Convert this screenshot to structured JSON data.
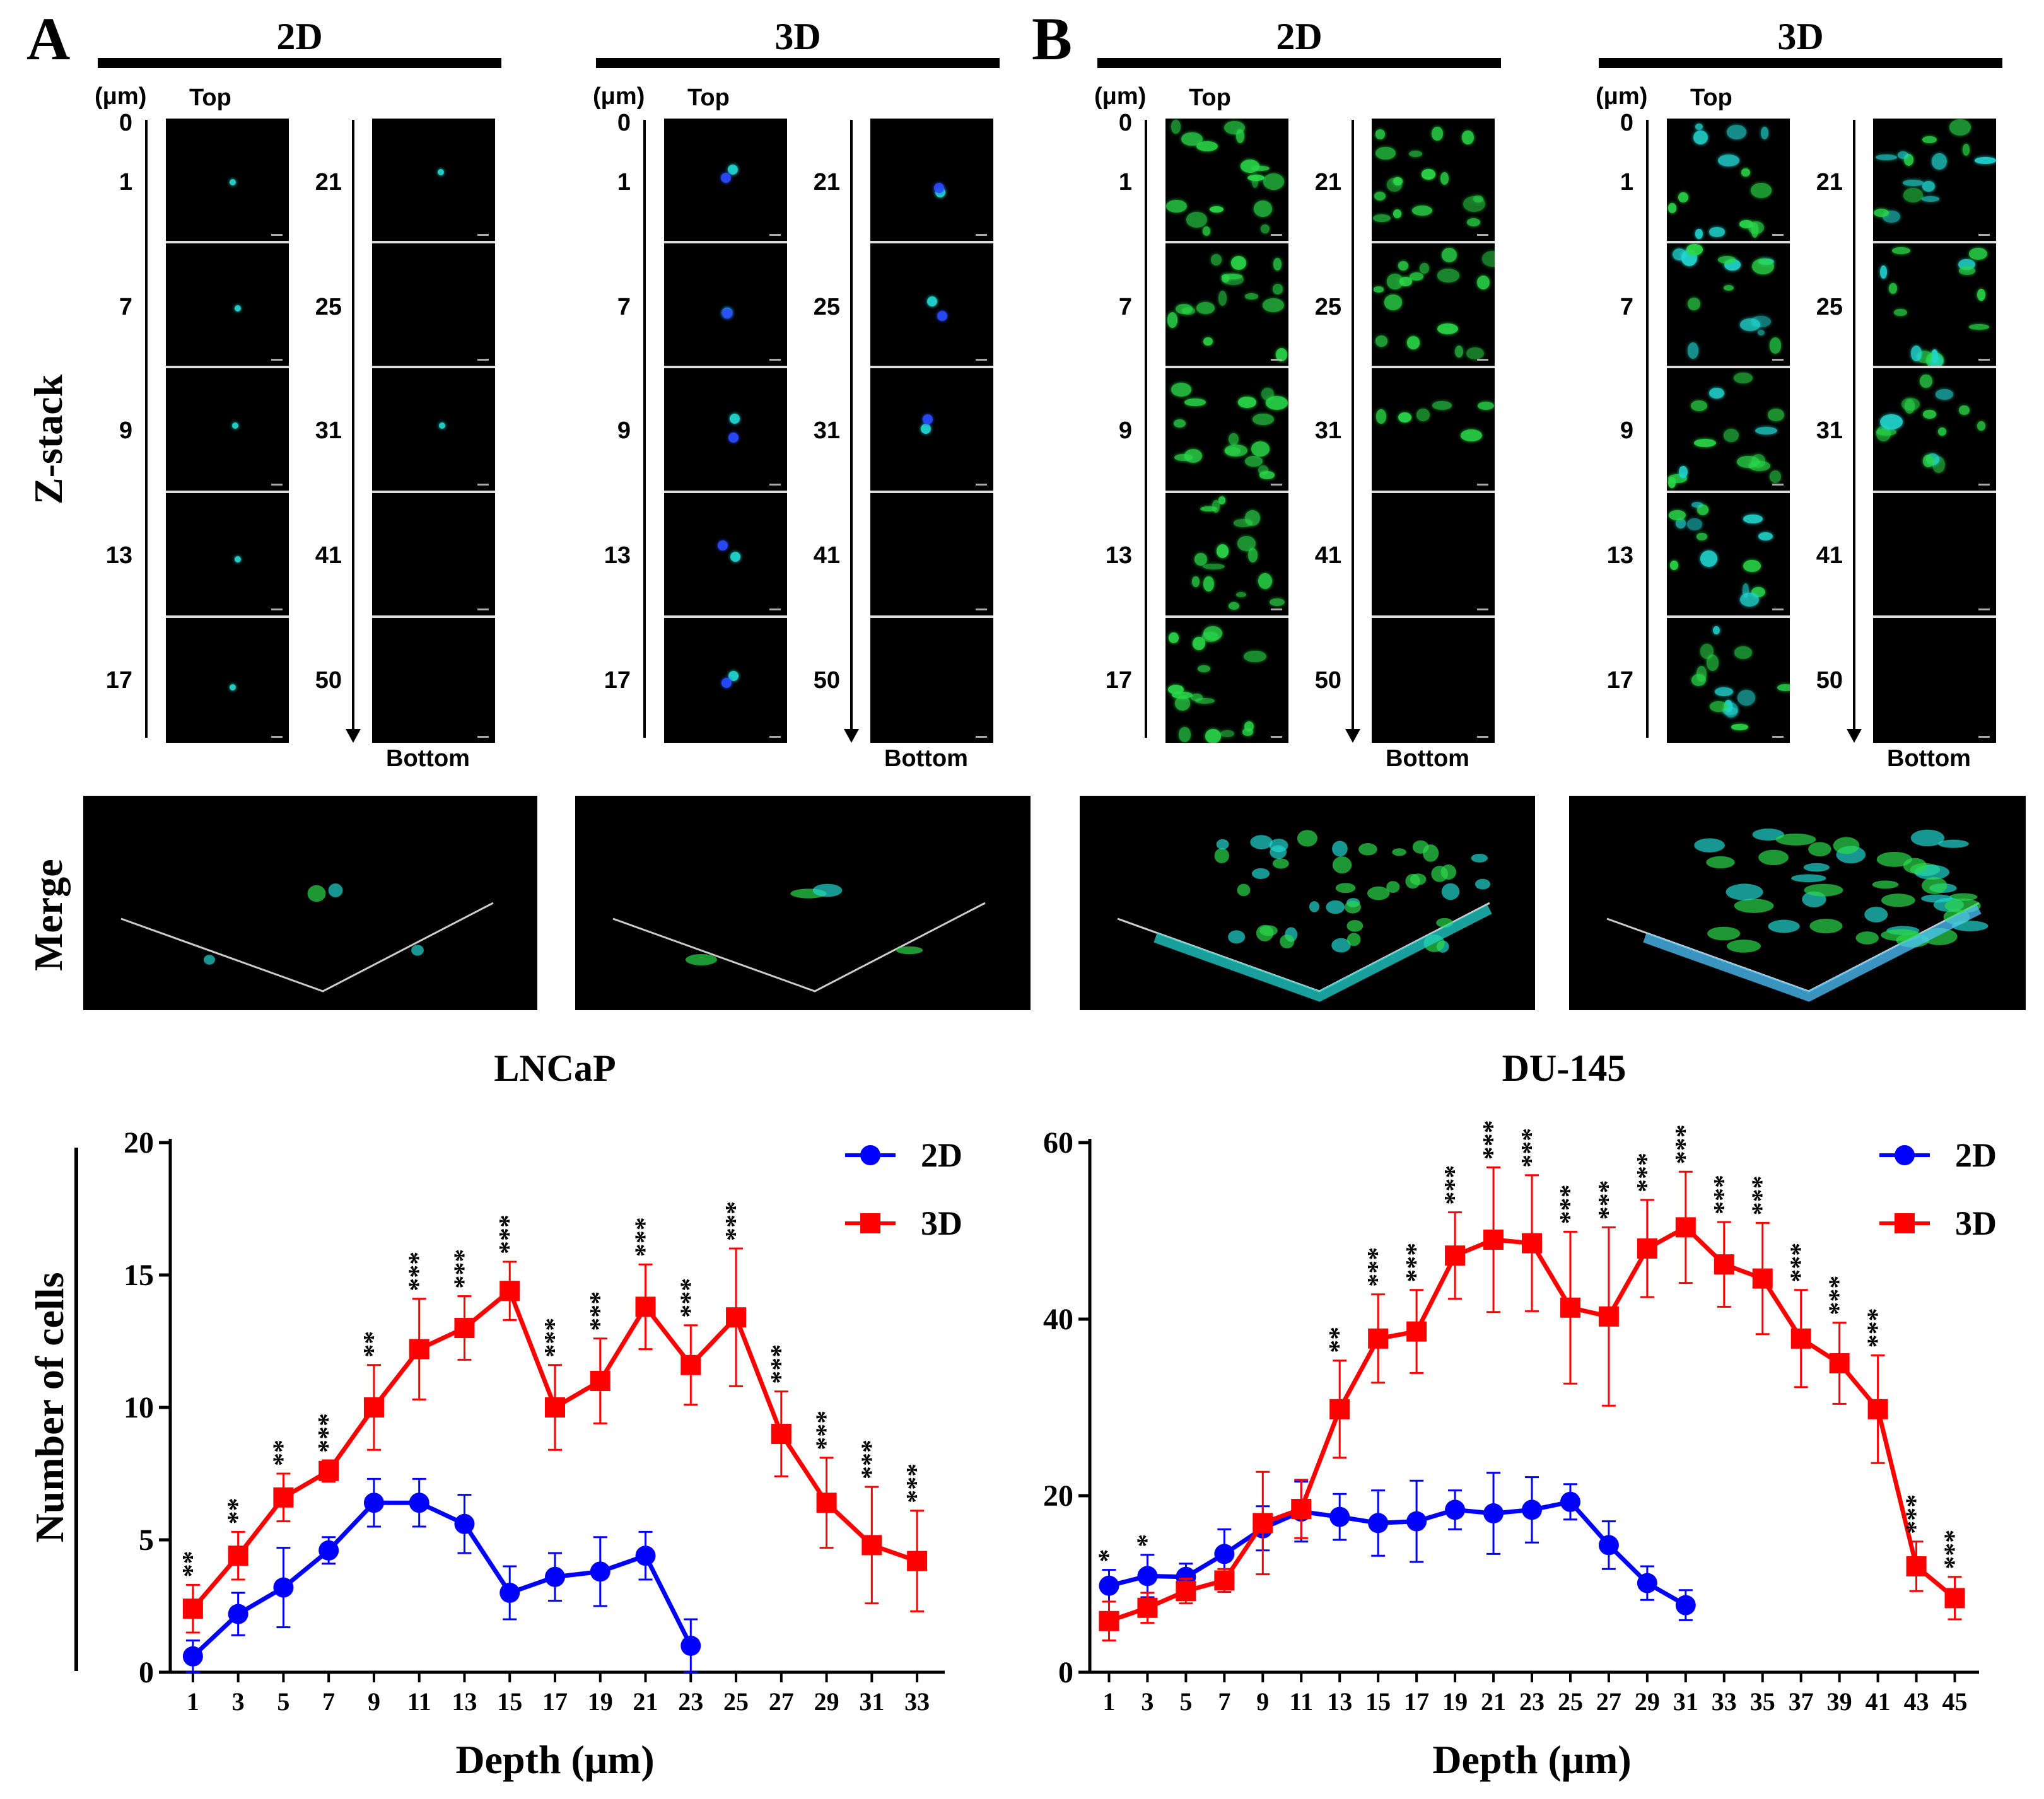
{
  "panels": [
    {
      "letter": "A",
      "conditions": [
        "2D",
        "3D"
      ],
      "bottom_label": "Bottom"
    },
    {
      "letter": "B",
      "conditions": [
        "2D",
        "3D"
      ],
      "bottom_label": "Bottom"
    }
  ],
  "zstack": {
    "row_title": "Z-stack",
    "unit_label": "(μm)",
    "top_label": "Top",
    "left_depths": [
      "0",
      "1",
      "7",
      "9",
      "13",
      "17"
    ],
    "right_depths": [
      "21",
      "25",
      "31",
      "41",
      "50"
    ]
  },
  "merge": {
    "row_title": "Merge"
  },
  "colors": {
    "series_2d": "#0000ff",
    "series_3d": "#ff0000",
    "fluor_green": "#2bd94a",
    "fluor_cyan": "#22d6d0",
    "fluor_blue": "#2a4bff"
  },
  "chart_data": [
    {
      "type": "line",
      "title": "LNCaP",
      "xlabel": "Depth (μm)",
      "ylabel": "Number of cells",
      "ylim": [
        0,
        20
      ],
      "yticks": [
        0,
        5,
        10,
        15,
        20
      ],
      "xticks": [
        1,
        3,
        5,
        7,
        9,
        11,
        13,
        15,
        17,
        19,
        21,
        23,
        25,
        27,
        29,
        31,
        33
      ],
      "legend_position": "top-right",
      "series": [
        {
          "name": "2D",
          "marker": "circle",
          "x": [
            1,
            3,
            5,
            7,
            9,
            11,
            13,
            15,
            17,
            19,
            21,
            23
          ],
          "values": [
            0.6,
            2.2,
            3.2,
            4.6,
            6.4,
            6.4,
            5.6,
            3.0,
            3.6,
            3.8,
            4.4,
            1.0
          ],
          "errors": [
            0.6,
            0.8,
            1.5,
            0.5,
            0.9,
            0.9,
            1.1,
            1.0,
            0.9,
            1.3,
            0.9,
            1.0
          ]
        },
        {
          "name": "3D",
          "marker": "square",
          "x": [
            1,
            3,
            5,
            7,
            9,
            11,
            13,
            15,
            17,
            19,
            21,
            23,
            25,
            27,
            29,
            31,
            33
          ],
          "values": [
            2.4,
            4.4,
            6.6,
            7.6,
            10.0,
            12.2,
            13.0,
            14.4,
            10.0,
            11.0,
            13.8,
            11.6,
            13.4,
            9.0,
            6.4,
            4.8,
            4.2
          ],
          "errors": [
            0.9,
            0.9,
            0.9,
            0.4,
            1.6,
            1.9,
            1.2,
            1.1,
            1.6,
            1.6,
            1.6,
            1.5,
            2.6,
            1.6,
            1.7,
            2.2,
            1.9
          ]
        }
      ],
      "significance": [
        "**",
        "**",
        "**",
        "***",
        "**",
        "***",
        "***",
        "***",
        "***",
        "***",
        "***",
        "***",
        "***",
        "***",
        "***",
        "***",
        "***"
      ]
    },
    {
      "type": "line",
      "title": "DU-145",
      "xlabel": "Depth (μm)",
      "ylabel": "",
      "ylim": [
        0,
        60
      ],
      "yticks": [
        0,
        20,
        40,
        60
      ],
      "xticks": [
        1,
        3,
        5,
        7,
        9,
        11,
        13,
        15,
        17,
        19,
        21,
        23,
        25,
        27,
        29,
        31,
        33,
        35,
        37,
        39,
        41,
        43,
        45
      ],
      "legend_position": "top-right",
      "series": [
        {
          "name": "2D",
          "marker": "circle",
          "x": [
            1,
            3,
            5,
            7,
            9,
            11,
            13,
            15,
            17,
            19,
            21,
            23,
            25,
            27,
            29,
            31
          ],
          "values": [
            9.8,
            10.9,
            10.8,
            13.4,
            16.3,
            18.2,
            17.6,
            16.9,
            17.1,
            18.4,
            18.0,
            18.4,
            19.3,
            14.4,
            10.1,
            7.6
          ],
          "errors": [
            1.8,
            2.4,
            1.5,
            2.8,
            2.5,
            3.4,
            2.6,
            3.7,
            4.6,
            2.2,
            4.6,
            3.7,
            2.0,
            2.7,
            1.9,
            1.7
          ]
        },
        {
          "name": "3D",
          "marker": "square",
          "x": [
            1,
            3,
            5,
            7,
            9,
            11,
            13,
            15,
            17,
            19,
            21,
            23,
            25,
            27,
            29,
            31,
            33,
            35,
            37,
            39,
            41,
            43,
            45
          ],
          "values": [
            5.8,
            7.3,
            9.2,
            10.4,
            16.9,
            18.5,
            29.8,
            37.8,
            38.6,
            47.2,
            49.0,
            48.6,
            41.3,
            40.3,
            48.0,
            50.4,
            46.2,
            44.6,
            37.8,
            35.0,
            29.8,
            12.0,
            8.4
          ],
          "errors": [
            2.2,
            1.7,
            1.4,
            1.3,
            5.8,
            3.3,
            5.5,
            5.0,
            4.7,
            4.9,
            8.2,
            7.7,
            8.6,
            10.1,
            5.5,
            6.3,
            4.8,
            6.3,
            5.5,
            4.6,
            6.1,
            2.8,
            2.4
          ]
        }
      ],
      "significance": [
        "*",
        "*",
        "",
        "",
        "",
        "",
        "**",
        "***",
        "***",
        "***",
        "***",
        "***",
        "***",
        "***",
        "***",
        "***",
        "***",
        "***",
        "***",
        "***",
        "***",
        "***",
        "***"
      ],
      "significance_on": [
        "2D",
        "2D",
        "",
        "",
        "",
        "",
        "3D",
        "3D",
        "3D",
        "3D",
        "3D",
        "3D",
        "3D",
        "3D",
        "3D",
        "3D",
        "3D",
        "3D",
        "3D",
        "3D",
        "3D",
        "3D",
        "3D"
      ]
    }
  ]
}
